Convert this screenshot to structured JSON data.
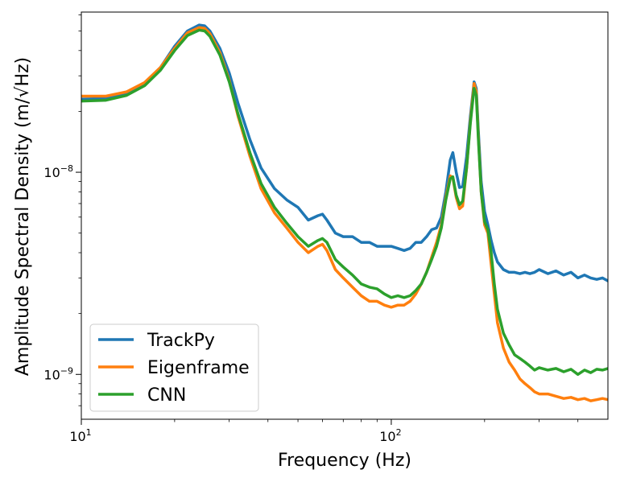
{
  "chart_data": {
    "type": "line",
    "title": "",
    "xlabel": "Frequency (Hz)",
    "ylabel": "Amplitude Spectral Density (m/√Hz)",
    "xscale": "log",
    "yscale": "log",
    "xlim": [
      10,
      500
    ],
    "ylim": [
      6e-10,
      6.2e-08
    ],
    "x_ticks": [
      {
        "value": 10,
        "base": "10",
        "exp": "1"
      },
      {
        "value": 100,
        "base": "10",
        "exp": "2"
      }
    ],
    "y_ticks": [
      {
        "value": 1e-09,
        "base": "10",
        "exp": "−9"
      },
      {
        "value": 1e-08,
        "base": "10",
        "exp": "−8"
      }
    ],
    "legend_position": "lower-left",
    "x": [
      10,
      12,
      14,
      16,
      18,
      20,
      22,
      24,
      25,
      26,
      28,
      30,
      32,
      35,
      38,
      42,
      46,
      50,
      54,
      58,
      60,
      62,
      66,
      70,
      75,
      80,
      85,
      90,
      95,
      100,
      105,
      110,
      115,
      120,
      125,
      130,
      135,
      140,
      145,
      150,
      155,
      158,
      162,
      166,
      170,
      175,
      180,
      185,
      188,
      191,
      195,
      200,
      205,
      210,
      215,
      220,
      230,
      240,
      250,
      260,
      270,
      280,
      290,
      300,
      320,
      340,
      360,
      380,
      400,
      420,
      440,
      460,
      480,
      500
    ],
    "series": [
      {
        "name": "TrackPy",
        "color": "#1f77b4",
        "values": [
          2.3e-08,
          2.32e-08,
          2.45e-08,
          2.75e-08,
          3.3e-08,
          4.2e-08,
          5e-08,
          5.35e-08,
          5.3e-08,
          5e-08,
          4.1e-08,
          3.1e-08,
          2.2e-08,
          1.45e-08,
          1.05e-08,
          8.3e-09,
          7.3e-09,
          6.7e-09,
          5.8e-09,
          6.1e-09,
          6.2e-09,
          5.8e-09,
          5e-09,
          4.8e-09,
          4.8e-09,
          4.5e-09,
          4.5e-09,
          4.3e-09,
          4.3e-09,
          4.3e-09,
          4.2e-09,
          4.1e-09,
          4.2e-09,
          4.5e-09,
          4.5e-09,
          4.8e-09,
          5.2e-09,
          5.3e-09,
          6e-09,
          8e-09,
          1.15e-08,
          1.25e-08,
          1e-08,
          8.4e-09,
          8.5e-09,
          1.2e-08,
          1.9e-08,
          2.8e-08,
          2.6e-08,
          1.6e-08,
          9e-09,
          6.4e-09,
          5.5e-09,
          4.6e-09,
          4e-09,
          3.6e-09,
          3.3e-09,
          3.2e-09,
          3.2e-09,
          3.15e-09,
          3.2e-09,
          3.15e-09,
          3.2e-09,
          3.3e-09,
          3.15e-09,
          3.25e-09,
          3.1e-09,
          3.2e-09,
          3e-09,
          3.1e-09,
          3e-09,
          2.95e-09,
          3e-09,
          2.9e-09
        ]
      },
      {
        "name": "Eigenframe",
        "color": "#ff7f0e",
        "values": [
          2.38e-08,
          2.38e-08,
          2.5e-08,
          2.78e-08,
          3.3e-08,
          4.1e-08,
          4.9e-08,
          5.2e-08,
          5.15e-08,
          4.85e-08,
          3.9e-08,
          2.85e-08,
          1.9e-08,
          1.2e-08,
          8.3e-09,
          6.3e-09,
          5.3e-09,
          4.5e-09,
          4e-09,
          4.3e-09,
          4.4e-09,
          4.1e-09,
          3.3e-09,
          3e-09,
          2.7e-09,
          2.45e-09,
          2.3e-09,
          2.3e-09,
          2.2e-09,
          2.15e-09,
          2.2e-09,
          2.2e-09,
          2.3e-09,
          2.5e-09,
          2.8e-09,
          3.2e-09,
          3.8e-09,
          4.5e-09,
          5.5e-09,
          7.5e-09,
          9.6e-09,
          9.4e-09,
          7.5e-09,
          6.6e-09,
          6.8e-09,
          1.05e-08,
          1.8e-08,
          2.75e-08,
          2.5e-08,
          1.5e-08,
          8e-09,
          5.5e-09,
          5e-09,
          3.5e-09,
          2.5e-09,
          1.8e-09,
          1.35e-09,
          1.15e-09,
          1.05e-09,
          9.5e-10,
          9e-10,
          8.6e-10,
          8.2e-10,
          8e-10,
          8e-10,
          7.8e-10,
          7.6e-10,
          7.7e-10,
          7.5e-10,
          7.6e-10,
          7.4e-10,
          7.5e-10,
          7.6e-10,
          7.5e-10
        ]
      },
      {
        "name": "CNN",
        "color": "#2ca02c",
        "values": [
          2.25e-08,
          2.27e-08,
          2.4e-08,
          2.68e-08,
          3.2e-08,
          4e-08,
          4.75e-08,
          5.05e-08,
          5e-08,
          4.7e-08,
          3.8e-08,
          2.8e-08,
          1.95e-08,
          1.25e-08,
          8.8e-09,
          6.7e-09,
          5.6e-09,
          4.8e-09,
          4.3e-09,
          4.6e-09,
          4.7e-09,
          4.5e-09,
          3.7e-09,
          3.4e-09,
          3.1e-09,
          2.8e-09,
          2.7e-09,
          2.65e-09,
          2.5e-09,
          2.4e-09,
          2.45e-09,
          2.4e-09,
          2.45e-09,
          2.6e-09,
          2.8e-09,
          3.2e-09,
          3.7e-09,
          4.3e-09,
          5.3e-09,
          7.3e-09,
          9.3e-09,
          9.5e-09,
          7.7e-09,
          6.9e-09,
          7.2e-09,
          1.05e-08,
          1.75e-08,
          2.6e-08,
          2.4e-08,
          1.45e-08,
          8e-09,
          5.7e-09,
          5.2e-09,
          4e-09,
          2.8e-09,
          2.1e-09,
          1.6e-09,
          1.4e-09,
          1.25e-09,
          1.2e-09,
          1.15e-09,
          1.1e-09,
          1.05e-09,
          1.08e-09,
          1.05e-09,
          1.07e-09,
          1.03e-09,
          1.06e-09,
          1e-09,
          1.05e-09,
          1.02e-09,
          1.06e-09,
          1.05e-09,
          1.07e-09
        ]
      }
    ]
  }
}
